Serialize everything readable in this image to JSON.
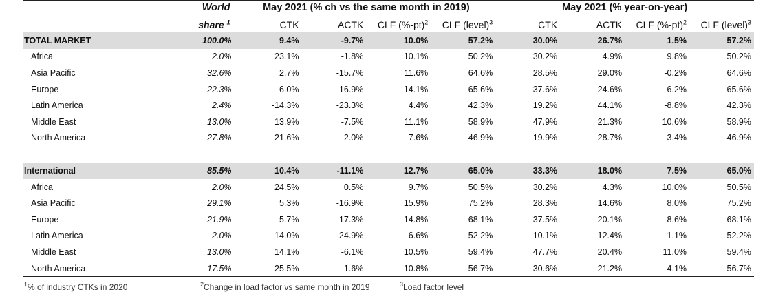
{
  "header": {
    "world_share_line1": "World",
    "world_share_line2": "share",
    "world_share_sup": "1",
    "group1_title": "May 2021 (% ch vs the same month in 2019)",
    "group2_title": "May 2021 (% year-on-year)",
    "col_ctk": "CTK",
    "col_actk": "ACTK",
    "col_clf_pt": "CLF (%-pt)",
    "col_clf_pt_sup": "2",
    "col_clf_level": "CLF (level)",
    "col_clf_level_sup": "3"
  },
  "sections": [
    {
      "total": {
        "label": "TOTAL MARKET",
        "share": "100.0%",
        "values": [
          "9.4%",
          "-9.7%",
          "10.0%",
          "57.2%",
          "30.0%",
          "26.7%",
          "1.5%",
          "57.2%"
        ]
      },
      "rows": [
        {
          "label": "Africa",
          "share": "2.0%",
          "values": [
            "23.1%",
            "-1.8%",
            "10.1%",
            "50.2%",
            "30.2%",
            "4.9%",
            "9.8%",
            "50.2%"
          ]
        },
        {
          "label": "Asia Pacific",
          "share": "32.6%",
          "values": [
            "2.7%",
            "-15.7%",
            "11.6%",
            "64.6%",
            "28.5%",
            "29.0%",
            "-0.2%",
            "64.6%"
          ]
        },
        {
          "label": "Europe",
          "share": "22.3%",
          "values": [
            "6.0%",
            "-16.9%",
            "14.1%",
            "65.6%",
            "37.6%",
            "24.6%",
            "6.2%",
            "65.6%"
          ]
        },
        {
          "label": "Latin America",
          "share": "2.4%",
          "values": [
            "-14.3%",
            "-23.3%",
            "4.4%",
            "42.3%",
            "19.2%",
            "44.1%",
            "-8.8%",
            "42.3%"
          ]
        },
        {
          "label": "Middle East",
          "share": "13.0%",
          "values": [
            "13.9%",
            "-7.5%",
            "11.1%",
            "58.9%",
            "47.9%",
            "21.3%",
            "10.6%",
            "58.9%"
          ]
        },
        {
          "label": "North America",
          "share": "27.8%",
          "values": [
            "21.6%",
            "2.0%",
            "7.6%",
            "46.9%",
            "19.9%",
            "28.7%",
            "-3.4%",
            "46.9%"
          ]
        }
      ]
    },
    {
      "total": {
        "label": "International",
        "share": "85.5%",
        "values": [
          "10.4%",
          "-11.1%",
          "12.7%",
          "65.0%",
          "33.3%",
          "18.0%",
          "7.5%",
          "65.0%"
        ]
      },
      "rows": [
        {
          "label": "Africa",
          "share": "2.0%",
          "values": [
            "24.5%",
            "0.5%",
            "9.7%",
            "50.5%",
            "30.2%",
            "4.3%",
            "10.0%",
            "50.5%"
          ]
        },
        {
          "label": "Asia Pacific",
          "share": "29.1%",
          "values": [
            "5.3%",
            "-16.9%",
            "15.9%",
            "75.2%",
            "28.3%",
            "14.6%",
            "8.0%",
            "75.2%"
          ]
        },
        {
          "label": "Europe",
          "share": "21.9%",
          "values": [
            "5.7%",
            "-17.3%",
            "14.8%",
            "68.1%",
            "37.5%",
            "20.1%",
            "8.6%",
            "68.1%"
          ]
        },
        {
          "label": "Latin America",
          "share": "2.0%",
          "values": [
            "-14.0%",
            "-24.9%",
            "6.6%",
            "52.2%",
            "10.1%",
            "12.4%",
            "-1.1%",
            "52.2%"
          ]
        },
        {
          "label": "Middle East",
          "share": "13.0%",
          "values": [
            "14.1%",
            "-6.1%",
            "10.5%",
            "59.4%",
            "47.7%",
            "20.4%",
            "11.0%",
            "59.4%"
          ]
        },
        {
          "label": "North America",
          "share": "17.5%",
          "values": [
            "25.5%",
            "1.6%",
            "10.8%",
            "56.7%",
            "30.6%",
            "21.2%",
            "4.1%",
            "56.7%"
          ]
        }
      ]
    }
  ],
  "footnotes": {
    "fn1_sup": "1",
    "fn1_text": "% of industry CTKs in 2020",
    "fn2_sup": "2",
    "fn2_text": "Change in load factor vs same month in 2019",
    "fn3_sup": "3",
    "fn3_text": "Load factor level"
  },
  "colors": {
    "total_row_bg": "#dcdcdc",
    "rule": "#222222"
  }
}
